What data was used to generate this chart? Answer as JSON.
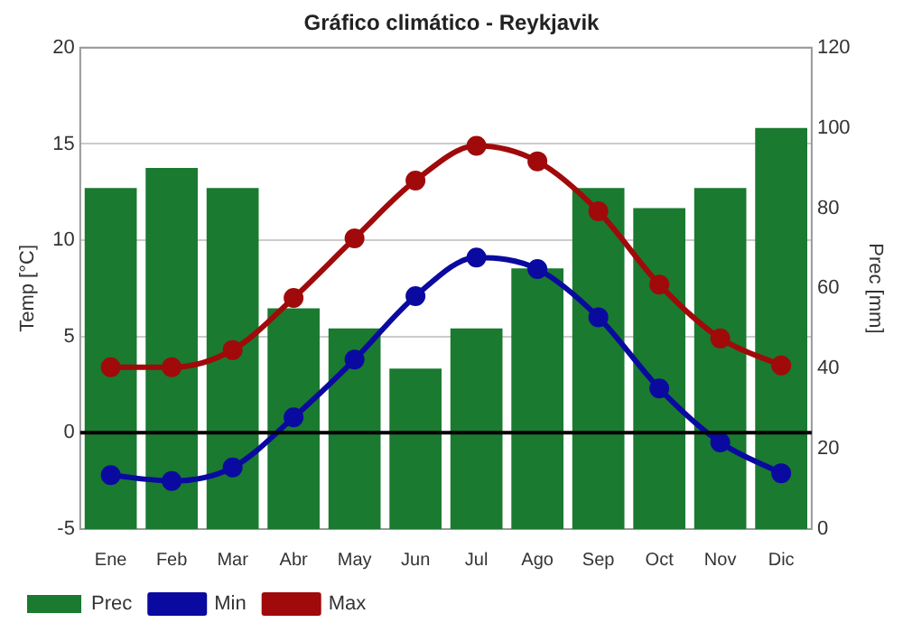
{
  "chart_data": {
    "type": "bar",
    "title": "Gráfico climático - Reykjavik",
    "ylabel": "Temp [°C]",
    "y2label": "Prec [mm]",
    "categories": [
      "Ene",
      "Feb",
      "Mar",
      "Abr",
      "May",
      "Jun",
      "Jul",
      "Ago",
      "Sep",
      "Oct",
      "Nov",
      "Dic"
    ],
    "series": [
      {
        "name": "Prec",
        "axis": "y2",
        "color": "#1a7a30",
        "values": [
          85,
          90,
          85,
          55,
          50,
          40,
          50,
          65,
          85,
          80,
          85,
          100
        ]
      },
      {
        "name": "Min",
        "type": "line",
        "color": "#0a0aa0",
        "values": [
          -2.2,
          -2.5,
          -1.8,
          0.8,
          3.8,
          7.1,
          9.1,
          8.5,
          6.0,
          2.3,
          -0.5,
          -2.1
        ]
      },
      {
        "name": "Max",
        "type": "line",
        "color": "#a00a0a",
        "values": [
          3.4,
          3.4,
          4.3,
          7.0,
          10.1,
          13.1,
          14.9,
          14.1,
          11.5,
          7.7,
          4.9,
          3.5
        ]
      }
    ],
    "ylim": [
      -5,
      20
    ],
    "yticks": [
      -5,
      0,
      5,
      10,
      15,
      20
    ],
    "y2lim": [
      0,
      120
    ],
    "y2ticks": [
      0,
      20,
      40,
      60,
      80,
      100,
      120
    ],
    "ref_lines": [
      {
        "axis": "y",
        "value": 0,
        "color": "#000000"
      }
    ],
    "grid": "y",
    "legend": "bottom left",
    "marker": "circle",
    "line_style": "solid"
  }
}
